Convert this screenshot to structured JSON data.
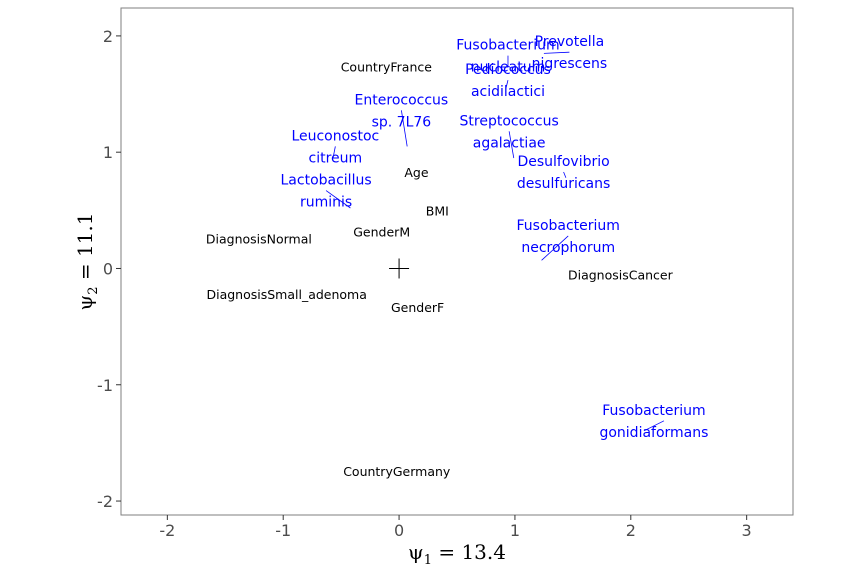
{
  "chart_data": {
    "type": "scatter",
    "xlabel": "ψ1 = 13.4",
    "ylabel": "ψ2 = 11.1",
    "axis_titles": {
      "x": {
        "symbol": "ψ",
        "sub": "1",
        "rest": " = 13.4"
      },
      "y": {
        "symbol": "ψ",
        "sub": "2",
        "rest": " = 11.1"
      }
    },
    "xlim": [
      -2.4,
      3.4
    ],
    "ylim": [
      -2.12,
      2.24
    ],
    "x_ticks": [
      -2,
      -1,
      0,
      1,
      2,
      3
    ],
    "y_ticks": [
      -2,
      -1,
      0,
      1,
      2
    ],
    "grid": false,
    "origin_marker": {
      "x": 0,
      "y": 0,
      "symbol": "+"
    },
    "colors": {
      "covariates": "#000000",
      "taxa": "#0000ff",
      "panel_border": "#7f7f7f",
      "tick": "#4d4d4d"
    },
    "covariates": [
      {
        "label": "CountryFrance",
        "x": -0.11,
        "y": 1.73
      },
      {
        "label": "Age",
        "x": 0.15,
        "y": 0.82
      },
      {
        "label": "BMI",
        "x": 0.33,
        "y": 0.49
      },
      {
        "label": "GenderM",
        "x": -0.15,
        "y": 0.31
      },
      {
        "label": "DiagnosisNormal",
        "x": -1.21,
        "y": 0.25
      },
      {
        "label": "DiagnosisCancer",
        "x": 1.91,
        "y": -0.06
      },
      {
        "label": "DiagnosisSmall_adenoma",
        "x": -0.97,
        "y": -0.23
      },
      {
        "label": "GenderF",
        "x": 0.16,
        "y": -0.34
      },
      {
        "label": "CountryGermany",
        "x": -0.02,
        "y": 1.75,
        "label_y": -1.75
      }
    ],
    "taxa": [
      {
        "name": "Prevotella nigrescens",
        "lines": [
          "Prevotella",
          "nigrescens"
        ],
        "label_x": 1.47,
        "label_y": 1.86,
        "px": 1.25,
        "py": 1.85
      },
      {
        "name": "Fusobacterium nucleatum",
        "lines": [
          "Fusobacterium",
          "nucleatum"
        ],
        "label_x": 0.94,
        "label_y": 1.83,
        "px": 0.94,
        "py": 1.74
      },
      {
        "name": "Pediococcus acidilactici",
        "lines": [
          "Pediococcus",
          "acidilactici"
        ],
        "label_x": 0.94,
        "label_y": 1.62,
        "px": 0.92,
        "py": 1.54
      },
      {
        "name": "Enterococcus sp. 7L76",
        "lines": [
          "Enterococcus",
          "sp. 7L76"
        ],
        "label_x": 0.02,
        "label_y": 1.36,
        "px": 0.07,
        "py": 1.05
      },
      {
        "name": "Streptococcus agalactiae",
        "lines": [
          "Streptococcus",
          "agalactiae"
        ],
        "label_x": 0.95,
        "label_y": 1.18,
        "px": 0.99,
        "py": 0.95
      },
      {
        "name": "Leuconostoc citreum",
        "lines": [
          "Leuconostoc",
          "citreum"
        ],
        "label_x": -0.55,
        "label_y": 1.05,
        "px": -0.57,
        "py": 0.95
      },
      {
        "name": "Desulfovibrio desulfuricans",
        "lines": [
          "Desulfovibrio",
          "desulfuricans"
        ],
        "label_x": 1.42,
        "label_y": 0.83,
        "px": 1.44,
        "py": 0.78
      },
      {
        "name": "Lactobacillus ruminis",
        "lines": [
          "Lactobacillus",
          "ruminis"
        ],
        "label_x": -0.63,
        "label_y": 0.67,
        "px": -0.42,
        "py": 0.52
      },
      {
        "name": "Fusobacterium necrophorum",
        "lines": [
          "Fusobacterium",
          "necrophorum"
        ],
        "label_x": 1.46,
        "label_y": 0.28,
        "px": 1.23,
        "py": 0.07
      },
      {
        "name": "Fusobacterium gonidiaformans",
        "lines": [
          "Fusobacterium",
          "gonidiaformans"
        ],
        "label_x": 2.2,
        "label_y": -1.31,
        "px": 2.2,
        "py": -1.31
      }
    ]
  }
}
